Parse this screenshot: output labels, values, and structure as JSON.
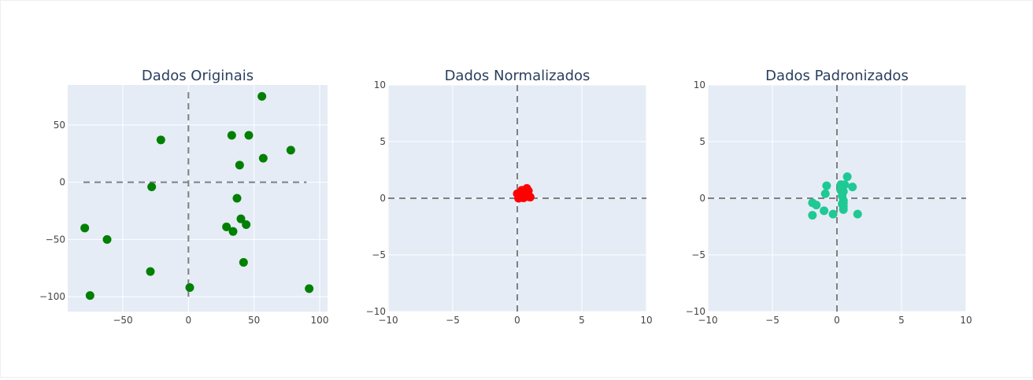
{
  "chart_data": [
    {
      "type": "scatter",
      "title": "Dados Originais",
      "xlabel": "",
      "ylabel": "",
      "xlim": [
        -92,
        106
      ],
      "ylim": [
        -113,
        85
      ],
      "xticks": [
        -50,
        0,
        50,
        100
      ],
      "yticks": [
        -100,
        -50,
        0,
        50
      ],
      "xtick_labels": [
        "−50",
        "0",
        "50",
        "100"
      ],
      "ytick_labels": [
        "−100",
        "−50",
        "0",
        "50"
      ],
      "marker_color": "#008000",
      "reference_lines": {
        "h_from": -80,
        "h_to": 90,
        "v_from": -100,
        "v_to": 80
      },
      "points": [
        [
          -79,
          -40
        ],
        [
          -62,
          -50
        ],
        [
          -75,
          -99
        ],
        [
          -21,
          37
        ],
        [
          -28,
          -4
        ],
        [
          -29,
          -78
        ],
        [
          1,
          -92
        ],
        [
          33,
          41
        ],
        [
          46,
          41
        ],
        [
          56,
          75
        ],
        [
          57,
          21
        ],
        [
          39,
          15
        ],
        [
          78,
          28
        ],
        [
          37,
          -14
        ],
        [
          40,
          -32
        ],
        [
          29,
          -39
        ],
        [
          34,
          -43
        ],
        [
          44,
          -37
        ],
        [
          42,
          -70
        ],
        [
          92,
          -93
        ]
      ]
    },
    {
      "type": "scatter",
      "title": "Dados Normalizados",
      "xlabel": "",
      "ylabel": "",
      "xlim": [
        -10,
        10
      ],
      "ylim": [
        -10,
        10
      ],
      "xticks": [
        -10,
        -5,
        0,
        5,
        10
      ],
      "yticks": [
        -10,
        -5,
        0,
        5,
        10
      ],
      "xtick_labels": [
        "−10",
        "−5",
        "0",
        "5",
        "10"
      ],
      "ytick_labels": [
        "−10",
        "−5",
        "0",
        "5",
        "10"
      ],
      "marker_color": "#ff0000",
      "reference_lines": {
        "h_from": -10,
        "h_to": 10,
        "v_from": -10,
        "v_to": 10
      },
      "points": [
        [
          0.0,
          0.4
        ],
        [
          0.15,
          0.35
        ],
        [
          0.1,
          0.0
        ],
        [
          0.35,
          0.7
        ],
        [
          0.3,
          0.5
        ],
        [
          0.3,
          0.1
        ],
        [
          0.48,
          0.04
        ],
        [
          0.64,
          0.72
        ],
        [
          0.7,
          0.72
        ],
        [
          0.74,
          0.87
        ],
        [
          0.75,
          0.6
        ],
        [
          0.62,
          0.53
        ],
        [
          0.86,
          0.65
        ],
        [
          0.61,
          0.35
        ],
        [
          0.62,
          0.28
        ],
        [
          0.58,
          0.24
        ],
        [
          0.6,
          0.24
        ],
        [
          0.66,
          0.25
        ],
        [
          0.65,
          0.13
        ],
        [
          1.0,
          0.1
        ]
      ]
    },
    {
      "type": "scatter",
      "title": "Dados Padronizados",
      "xlabel": "",
      "ylabel": "",
      "xlim": [
        -10,
        10
      ],
      "ylim": [
        -10,
        10
      ],
      "xticks": [
        -10,
        -5,
        0,
        5,
        10
      ],
      "yticks": [
        -10,
        -5,
        0,
        5,
        10
      ],
      "xtick_labels": [
        "−10",
        "−5",
        "0",
        "5",
        "10"
      ],
      "ytick_labels": [
        "−10",
        "−5",
        "0",
        "5",
        "10"
      ],
      "marker_color": "#1ec994",
      "reference_lines": {
        "h_from": -10,
        "h_to": 10,
        "v_from": -10,
        "v_to": 10
      },
      "points": [
        [
          -1.9,
          -0.4
        ],
        [
          -1.6,
          -0.6
        ],
        [
          -1.9,
          -1.5
        ],
        [
          -0.8,
          1.1
        ],
        [
          -0.9,
          0.4
        ],
        [
          -1.0,
          -1.1
        ],
        [
          -0.3,
          -1.4
        ],
        [
          0.3,
          1.2
        ],
        [
          0.6,
          1.2
        ],
        [
          0.8,
          1.9
        ],
        [
          1.2,
          1.0
        ],
        [
          0.5,
          0.6
        ],
        [
          0.4,
          0.2
        ],
        [
          0.5,
          -0.2
        ],
        [
          0.4,
          -0.5
        ],
        [
          0.5,
          -0.7
        ],
        [
          0.5,
          -0.4
        ],
        [
          0.5,
          -1.0
        ],
        [
          0.3,
          0.7
        ],
        [
          1.6,
          -1.4
        ]
      ]
    }
  ]
}
